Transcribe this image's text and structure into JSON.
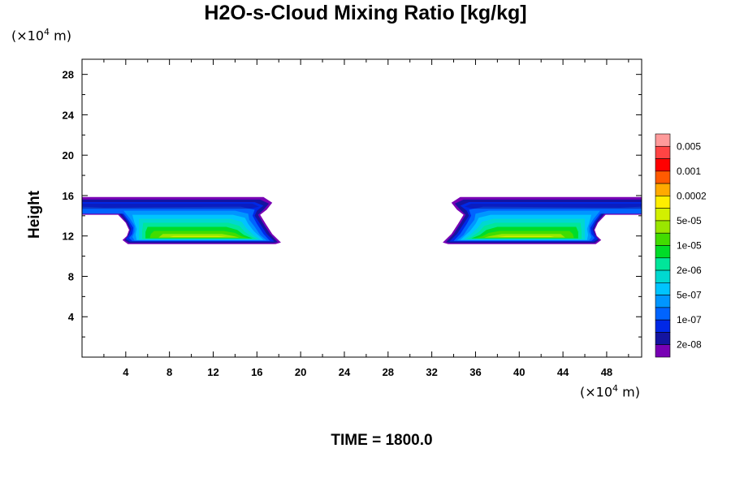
{
  "chart_data": {
    "type": "contourf",
    "title": "H2O-s-Cloud Mixing Ratio [kg/kg]",
    "ylabel": "Height",
    "x_unit": "(×10",
    "x_unit_exp": "4",
    "x_unit_tail": " m)",
    "y_unit": "(×10",
    "y_unit_exp": "4",
    "y_unit_tail": " m)",
    "xlim": [
      0,
      51.2
    ],
    "ylim": [
      0,
      29.5
    ],
    "x_ticks": [
      4,
      8,
      12,
      16,
      20,
      24,
      28,
      32,
      36,
      40,
      44,
      48
    ],
    "y_ticks": [
      4,
      8,
      12,
      16,
      20,
      24,
      28
    ],
    "colorbar": {
      "labels": [
        "0.005",
        "0.001",
        "0.0002",
        "5e-05",
        "1e-05",
        "2e-06",
        "5e-07",
        "1e-07",
        "2e-08"
      ],
      "colors": [
        "#ff9a9a",
        "#ff4444",
        "#ff0000",
        "#ff5a00",
        "#ffaa00",
        "#ffee00",
        "#d2f000",
        "#9ae600",
        "#42dc00",
        "#00dc28",
        "#00e69a",
        "#00d8d0",
        "#00c4ff",
        "#0096ff",
        "#0064ff",
        "#0028e6",
        "#1414a0",
        "#7800b4"
      ]
    },
    "cloud_regions": [
      {
        "x": [
          0,
          18.1
        ],
        "y": [
          11.2,
          15.8
        ]
      },
      {
        "x": [
          33.1,
          51.2
        ],
        "y": [
          11.2,
          15.8
        ]
      }
    ]
  },
  "footer": {
    "time_label": "TIME = 1800.0"
  }
}
